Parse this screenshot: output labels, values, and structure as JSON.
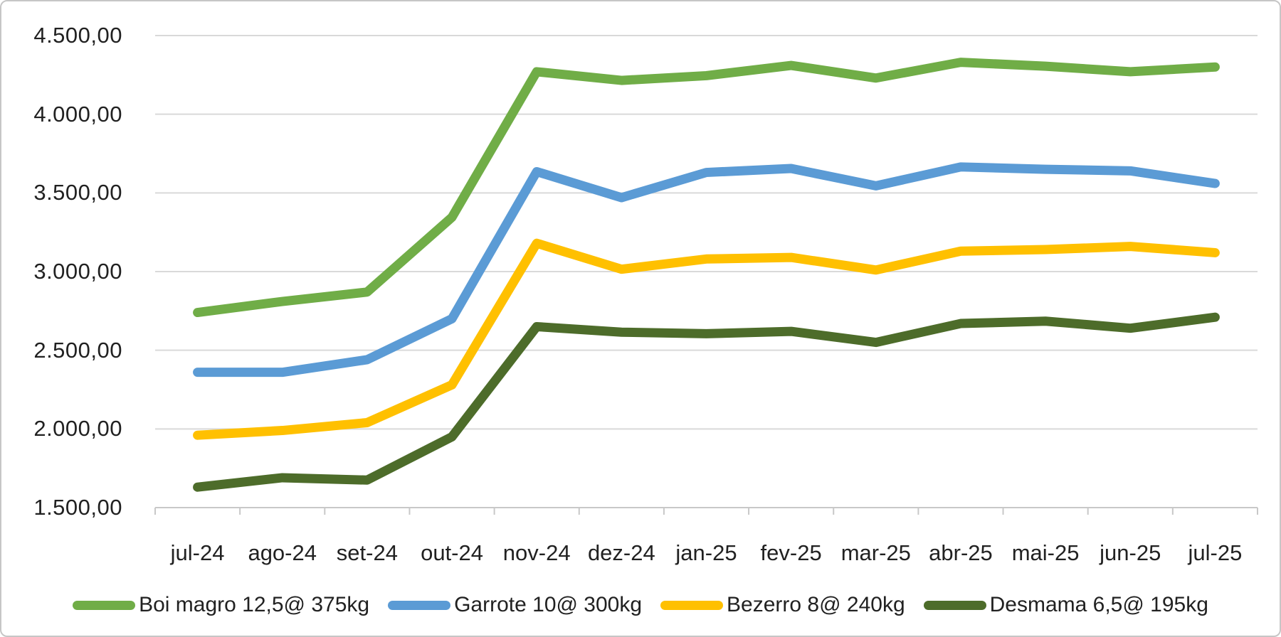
{
  "chart_data": {
    "type": "line",
    "categories": [
      "jul-24",
      "ago-24",
      "set-24",
      "out-24",
      "nov-24",
      "dez-24",
      "jan-25",
      "fev-25",
      "mar-25",
      "abr-25",
      "mai-25",
      "jun-25",
      "jul-25"
    ],
    "series": [
      {
        "name": "Boi magro 12,5@ 375kg",
        "color": "#70AD47",
        "values": [
          2740,
          2810,
          2870,
          3345,
          4270,
          4215,
          4245,
          4310,
          4230,
          4330,
          4305,
          4270,
          4300
        ]
      },
      {
        "name": "Garrote 10@ 300kg",
        "color": "#5B9BD5",
        "values": [
          2360,
          2360,
          2440,
          2700,
          3635,
          3470,
          3630,
          3655,
          3545,
          3665,
          3650,
          3640,
          3560
        ]
      },
      {
        "name": "Bezerro 8@ 240kg",
        "color": "#FFC000",
        "values": [
          1960,
          1990,
          2040,
          2280,
          3180,
          3015,
          3080,
          3090,
          3010,
          3130,
          3140,
          3160,
          3120
        ]
      },
      {
        "name": "Desmama 6,5@ 195kg",
        "color": "#4D6C2A",
        "values": [
          1630,
          1690,
          1675,
          1950,
          2650,
          2615,
          2605,
          2620,
          2550,
          2670,
          2685,
          2640,
          2710
        ]
      }
    ],
    "title": "",
    "xlabel": "",
    "ylabel": "",
    "ylim": [
      1500,
      4500
    ],
    "y_tick_step": 500,
    "y_tick_labels": [
      "4.500,00",
      "4.000,00",
      "3.500,00",
      "3.000,00",
      "2.500,00",
      "2.000,00",
      "1.500,00"
    ],
    "grid": true,
    "legend_position": "bottom"
  },
  "colors": {
    "grid": "#D9D9D9",
    "axis": "#C8C8C8",
    "text": "#212121",
    "background": "#FFFFFF",
    "border": "#C6C6C6"
  }
}
